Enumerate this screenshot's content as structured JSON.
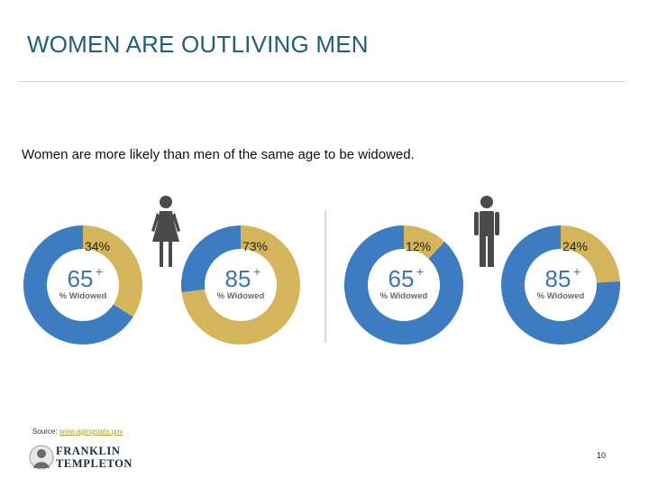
{
  "slide": {
    "title": "WOMEN ARE OUTLIVING MEN",
    "subtitle": "Women are more likely than men of the same age to be widowed.",
    "source_prefix": "Source: ",
    "source_link": "www.agingstats.gov",
    "page_number": "10",
    "logo_line1": "FRANKLIN",
    "logo_line2": "TEMPLETON"
  },
  "colors": {
    "title": "#1f5f7a",
    "widowed": "#d4b55b",
    "not_widowed": "#3d7cc0",
    "divider": "#d6d6d6"
  },
  "icons": {
    "women": "woman-icon",
    "men": "man-icon"
  },
  "chart_data": [
    {
      "type": "pie",
      "group": "Women",
      "age_label": "65",
      "age_suffix": "+",
      "caption": "% Widowed",
      "value_label": "34%",
      "categories": [
        "Widowed",
        "Not widowed"
      ],
      "values": [
        34,
        66
      ]
    },
    {
      "type": "pie",
      "group": "Women",
      "age_label": "85",
      "age_suffix": "+",
      "caption": "% Widowed",
      "value_label": "73%",
      "categories": [
        "Widowed",
        "Not widowed"
      ],
      "values": [
        73,
        27
      ]
    },
    {
      "type": "pie",
      "group": "Men",
      "age_label": "65",
      "age_suffix": "+",
      "caption": "% Widowed",
      "value_label": "12%",
      "categories": [
        "Widowed",
        "Not widowed"
      ],
      "values": [
        12,
        88
      ]
    },
    {
      "type": "pie",
      "group": "Men",
      "age_label": "85",
      "age_suffix": "+",
      "caption": "% Widowed",
      "value_label": "24%",
      "categories": [
        "Widowed",
        "Not widowed"
      ],
      "values": [
        24,
        76
      ]
    }
  ]
}
